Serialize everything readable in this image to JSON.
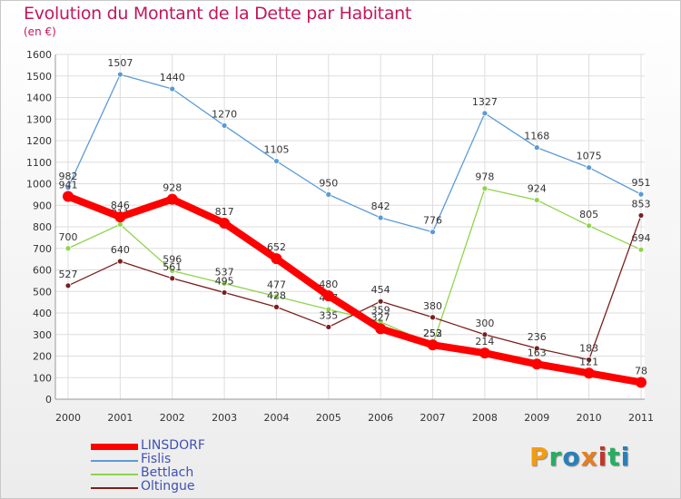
{
  "header": {
    "title": "Evolution du Montant de la Dette par Habitant",
    "subtitle": "(en €)"
  },
  "logo": {
    "text": "Proxiti",
    "letters": [
      "P",
      "r",
      "o",
      "x",
      "i",
      "t",
      "i"
    ],
    "colors": [
      "#f39c12",
      "#27ae60",
      "#2980b9",
      "#e67e22",
      "#c0392b",
      "#27ae60",
      "#2980b9"
    ]
  },
  "chart_data": {
    "type": "line",
    "title": "Evolution du Montant de la Dette par Habitant",
    "subtitle": "(en €)",
    "xlabel": "",
    "ylabel": "",
    "ylim": [
      0,
      1600
    ],
    "yticks": [
      0,
      100,
      200,
      300,
      400,
      500,
      600,
      700,
      800,
      900,
      1000,
      1100,
      1200,
      1300,
      1400,
      1500,
      1600
    ],
    "x": [
      "2000",
      "2001",
      "2002",
      "2003",
      "2004",
      "2005",
      "2006",
      "2007",
      "2008",
      "2009",
      "2010",
      "2011"
    ],
    "grid": true,
    "legend_position": "bottom-left",
    "series": [
      {
        "name": "LINSDORF",
        "color": "#ff0000",
        "values": [
          941,
          846,
          928,
          817,
          652,
          480,
          327,
          252,
          214,
          163,
          121,
          78
        ]
      },
      {
        "name": "Fislis",
        "color": "#5b9bd5",
        "values": [
          982,
          1507,
          1440,
          1270,
          1105,
          950,
          842,
          776,
          1327,
          1168,
          1075,
          951
        ]
      },
      {
        "name": "Bettlach",
        "color": "#8fd44a",
        "values": [
          700,
          811,
          596,
          537,
          477,
          417,
          359,
          253,
          978,
          924,
          805,
          694
        ]
      },
      {
        "name": "Oltingue",
        "color": "#7a1f1f",
        "values": [
          527,
          640,
          561,
          495,
          428,
          335,
          454,
          380,
          300,
          236,
          183,
          853
        ]
      }
    ]
  }
}
